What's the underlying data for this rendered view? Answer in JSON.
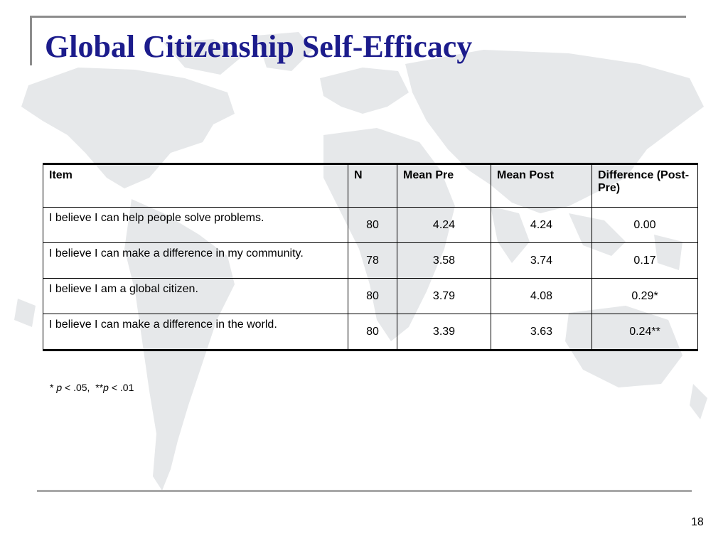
{
  "slide": {
    "title": "Global Citizenship Self-Efficacy",
    "page_number": "18"
  },
  "table": {
    "headers": {
      "item": "Item",
      "n": "N",
      "mean_pre": "Mean Pre",
      "mean_post": "Mean Post",
      "difference": "Difference (Post-Pre)"
    },
    "rows": [
      {
        "item": "I believe I can help people solve problems.",
        "n": "80",
        "mean_pre": "4.24",
        "mean_post": "4.24",
        "difference": "0.00"
      },
      {
        "item": "I believe I can make a difference in my community.",
        "n": "78",
        "mean_pre": "3.58",
        "mean_post": "3.74",
        "difference": "0.17"
      },
      {
        "item": "I believe I am a global citizen.",
        "n": "80",
        "mean_pre": "3.79",
        "mean_post": "4.08",
        "difference": "0.29*"
      },
      {
        "item": "I believe I can make a difference in the world.",
        "n": "80",
        "mean_pre": "3.39",
        "mean_post": "3.63",
        "difference": "0.24**"
      }
    ]
  },
  "footnote": {
    "star1": "* ",
    "p1": "p",
    "threshold1": " < .05,  ",
    "star2": "**",
    "p2": "p",
    "threshold2": " < .01"
  },
  "colors": {
    "title": "#1c1c8c",
    "rules": "#8c8c8c",
    "map": "#e6e8ea"
  }
}
